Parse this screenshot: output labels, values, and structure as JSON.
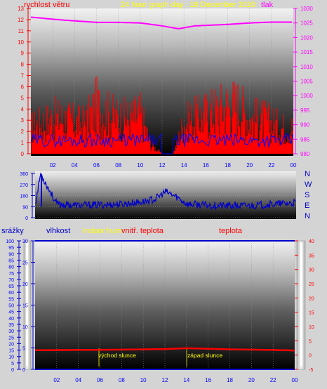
{
  "header": {
    "wind_label": "rychlost větru",
    "title": "24 hour graph day : 19 December 2020",
    "pressure_label": "tlak"
  },
  "bottom_header": {
    "rain_label": "srážky",
    "humidity_label": "vlhkost",
    "indoor_hum_label": "Indoor hum",
    "indoor_temp_label": "vnitř. teplota",
    "temp_label": "teplota"
  },
  "compass_labels": [
    "N",
    "W",
    "S",
    "E",
    "N"
  ],
  "annotations": {
    "sunrise": "východ slunce",
    "sunset": "západ slunce"
  },
  "colors": {
    "wind": "#ff0000",
    "gust": "#0000ff",
    "pressure": "#ff00ff",
    "direction": "#0000cc",
    "temperature": "#ff0000",
    "humidity": "#0000cc",
    "title": "#ffff00",
    "sun_text": "#ffff00",
    "axis_numbers": "#0000ff"
  },
  "chart_data": [
    {
      "type": "area",
      "name": "wind-pressure",
      "x_ticks": [
        "02",
        "04",
        "06",
        "08",
        "10",
        "12",
        "14",
        "16",
        "18",
        "20",
        "22",
        "00"
      ],
      "y_left_ticks": [
        "0",
        "1",
        "2",
        "3",
        "4",
        "5",
        "6",
        "7",
        "8",
        "9",
        "10",
        "11",
        "12",
        "13"
      ],
      "y_left_range": [
        0,
        13
      ],
      "y_right_ticks": [
        "980",
        "985",
        "990",
        "995",
        "1000",
        "1005",
        "1010",
        "1015",
        "1020",
        "1025",
        "1030"
      ],
      "y_right_range": [
        980,
        1030
      ],
      "series": [
        {
          "name": "rychlost větru",
          "hours": [
            0,
            1,
            2,
            3,
            4,
            5,
            6,
            7,
            8,
            9,
            10,
            11,
            12,
            13,
            14,
            15,
            16,
            17,
            18,
            19,
            20,
            21,
            22,
            23,
            24
          ],
          "values": [
            3,
            3.5,
            4,
            4,
            3.5,
            3.5,
            5.5,
            4.5,
            4,
            4,
            4.5,
            1,
            0,
            0,
            3.5,
            4,
            4.5,
            5,
            5.5,
            5.5,
            4,
            4,
            3.5,
            3,
            3
          ]
        },
        {
          "name": "tlak",
          "hours": [
            0,
            2,
            4,
            6,
            8,
            10,
            12,
            13.5,
            15,
            18,
            20,
            22,
            24
          ],
          "values": [
            1027,
            1026.3,
            1025.7,
            1025.2,
            1025.2,
            1025,
            1024,
            1023,
            1024,
            1024.5,
            1025,
            1025.3,
            1025.3
          ]
        }
      ]
    },
    {
      "type": "line",
      "name": "wind-direction",
      "y_ticks": [
        "0",
        "90",
        "180",
        "270",
        "360"
      ],
      "y_range": [
        0,
        360
      ],
      "series": [
        {
          "name": "direction",
          "hours": [
            0,
            0.5,
            2,
            4,
            6,
            8,
            10,
            11,
            12,
            13,
            14,
            16,
            18,
            20,
            22,
            24
          ],
          "values": [
            90,
            360,
            110,
            100,
            105,
            110,
            130,
            150,
            210,
            170,
            110,
            100,
            95,
            100,
            110,
            120
          ]
        }
      ]
    },
    {
      "type": "line",
      "name": "temperature-humidity-rain",
      "y_rain_ticks": [
        "0",
        "5",
        "10",
        "15",
        "20",
        "25",
        "30",
        "35",
        "40",
        "45",
        "50",
        "55",
        "60",
        "65",
        "70",
        "75",
        "80",
        "85",
        "90",
        "95",
        "100"
      ],
      "y_rain_range": [
        0,
        100
      ],
      "y_humidity_ticks": [
        "0",
        "5",
        "10",
        "15",
        "20",
        "25",
        "30"
      ],
      "y_humidity_range": [
        0,
        30
      ],
      "y_temp_ticks": [
        "-5",
        "0",
        "5",
        "10",
        "15",
        "20",
        "25",
        "30",
        "35",
        "40"
      ],
      "y_temp_range": [
        -5,
        40
      ],
      "series": [
        {
          "name": "teplota",
          "hours": [
            0,
            4,
            8,
            10,
            12,
            14,
            16,
            18,
            20,
            22,
            24
          ],
          "values": [
            1.7,
            1.8,
            1.9,
            2.0,
            2.1,
            2.4,
            2.2,
            2.0,
            1.9,
            1.8,
            1.6
          ]
        },
        {
          "name": "vlhkost",
          "hours": [
            0,
            24
          ],
          "values": [
            30,
            30
          ]
        }
      ]
    }
  ]
}
